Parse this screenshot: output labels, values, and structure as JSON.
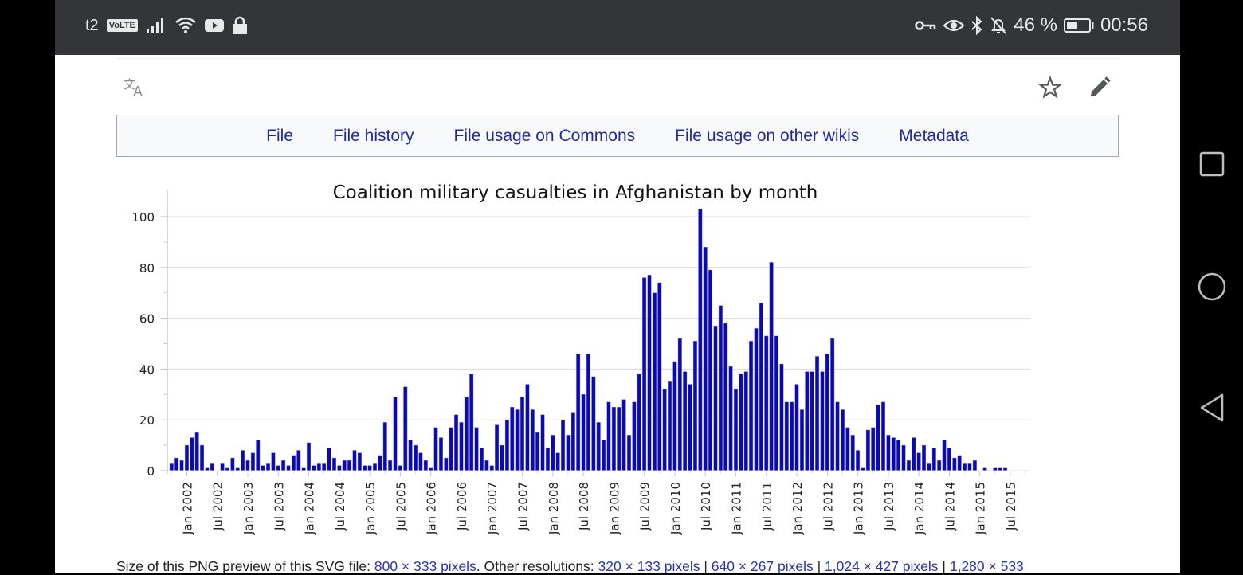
{
  "status_bar": {
    "carrier": "t2",
    "volte": "VoLTE",
    "battery_percent": "46 %",
    "time": "00:56"
  },
  "toolbar": {
    "translate_icon": "translate-icon",
    "star_icon": "star-icon",
    "edit_icon": "pencil-icon"
  },
  "tabs": [
    {
      "label": "File"
    },
    {
      "label": "File history"
    },
    {
      "label": "File usage on Commons"
    },
    {
      "label": "File usage on other wikis"
    },
    {
      "label": "Metadata"
    }
  ],
  "footer": {
    "prefix": "Size of this PNG preview of this SVG file: ",
    "preview_link": "800 × 333 pixels",
    "middle": ". Other resolutions: ",
    "resolutions": [
      "320 × 133 pixels",
      "640 × 267 pixels",
      "1,024 × 427 pixels",
      "1,280 × 533"
    ],
    "separator": " | "
  },
  "colors": {
    "bar": "#0a0aae",
    "link": "#202ba0",
    "status_bg": "#343538"
  },
  "chart_data": {
    "type": "bar",
    "title": "Coalition military casualties in Afghanistan by month",
    "xlabel": "",
    "ylabel": "",
    "ylim": [
      0,
      105
    ],
    "yticks": [
      0,
      20,
      40,
      60,
      80,
      100
    ],
    "grid": true,
    "start": "Oct 2001",
    "x_tick_labels": [
      "Jan 2002",
      "Jul 2002",
      "Jan 2003",
      "Jul 2003",
      "Jan 2004",
      "Jul 2004",
      "Jan 2005",
      "Jul 2005",
      "Jan 2006",
      "Jul 2006",
      "Jan 2007",
      "Jul 2007",
      "Jan 2008",
      "Jul 2008",
      "Jan 2009",
      "Jul 2009",
      "Jan 2010",
      "Jul 2010",
      "Jan 2011",
      "Jul 2011",
      "Jan 2012",
      "Jul 2012",
      "Jan 2013",
      "Jul 2013",
      "Jan 2014",
      "Jul 2014",
      "Jan 2015",
      "Jul 2015"
    ],
    "values": [
      3,
      5,
      4,
      10,
      13,
      15,
      10,
      1,
      3,
      0,
      3,
      1,
      5,
      1,
      8,
      4,
      7,
      12,
      2,
      3,
      7,
      2,
      4,
      2,
      6,
      8,
      1,
      11,
      2,
      3,
      3,
      9,
      5,
      2,
      4,
      4,
      8,
      7,
      2,
      2,
      3,
      6,
      19,
      4,
      29,
      2,
      33,
      12,
      10,
      7,
      4,
      1,
      17,
      13,
      5,
      17,
      22,
      19,
      29,
      38,
      17,
      9,
      4,
      2,
      18,
      10,
      20,
      25,
      24,
      29,
      34,
      24,
      15,
      22,
      9,
      14,
      7,
      20,
      14,
      23,
      46,
      30,
      46,
      37,
      19,
      12,
      27,
      25,
      25,
      28,
      14,
      27,
      38,
      76,
      77,
      70,
      74,
      32,
      35,
      43,
      52,
      39,
      34,
      51,
      103,
      88,
      79,
      57,
      65,
      58,
      41,
      32,
      38,
      39,
      51,
      56,
      66,
      53,
      82,
      53,
      42,
      27,
      27,
      34,
      24,
      39,
      39,
      45,
      39,
      46,
      52,
      27,
      24,
      17,
      14,
      8,
      1,
      16,
      17,
      26,
      27,
      14,
      13,
      12,
      10,
      4,
      13,
      7,
      10,
      3,
      9,
      4,
      12,
      9,
      5,
      6,
      3,
      3,
      4,
      0,
      1,
      0,
      1,
      1,
      1,
      0
    ]
  }
}
